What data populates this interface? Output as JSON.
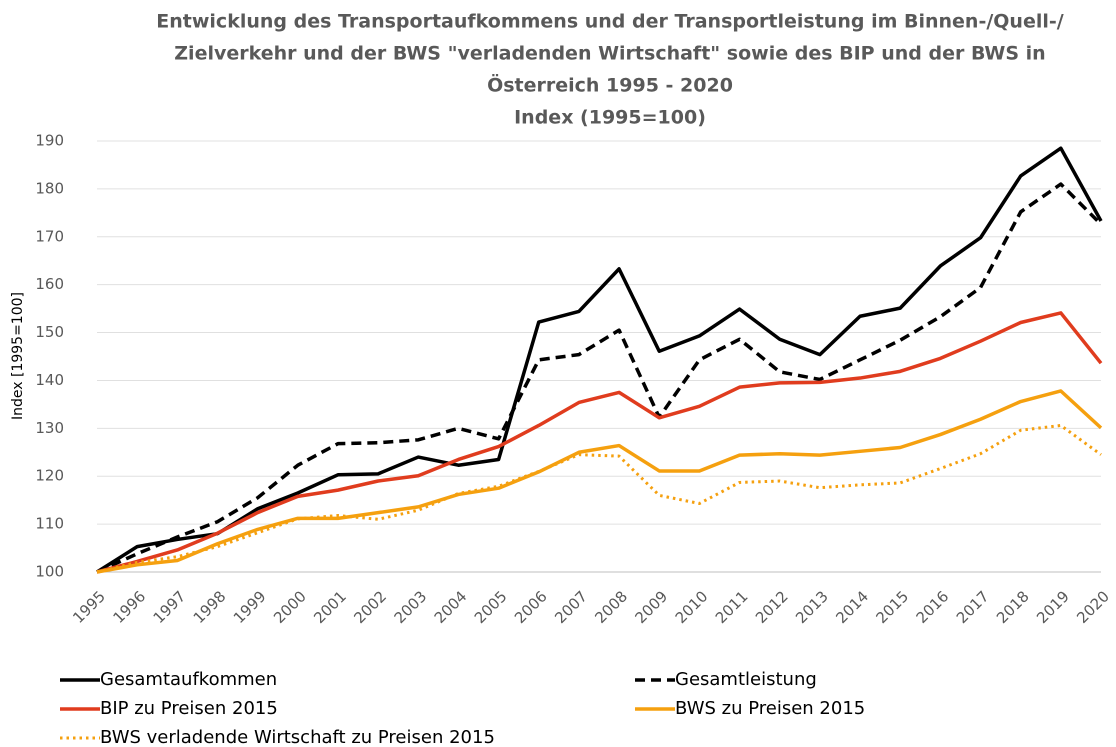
{
  "chart_data": {
    "type": "line",
    "title": [
      "Entwicklung des Transportaufkommens und der Transportleistung im Binnen-/Quell-/",
      "Zielverkehr und der BWS \"verladenden Wirtschaft\" sowie des BIP und der BWS in",
      "Österreich 1995 - 2020",
      "Index (1995=100)"
    ],
    "ylabel": "Index [1995=100]",
    "categories": [
      "1995",
      "1996",
      "1997",
      "1998",
      "1999",
      "2000",
      "2001",
      "2002",
      "2003",
      "2004",
      "2005",
      "2006",
      "2007",
      "2008",
      "2009",
      "2010",
      "2011",
      "2012",
      "2013",
      "2014",
      "2015",
      "2016",
      "2017",
      "2018",
      "2019",
      "2020"
    ],
    "ylim": [
      100,
      190
    ],
    "yticks": [
      100,
      110,
      120,
      130,
      140,
      150,
      160,
      170,
      180,
      190
    ],
    "grid": true,
    "series": [
      {
        "name": "Gesamtaufkommen",
        "color": "#000000",
        "dash": "solid",
        "values": [
          100,
          105.3,
          106.8,
          108,
          113.2,
          116.5,
          120.3,
          120.5,
          124,
          122.3,
          123.5,
          152.2,
          154.4,
          163.3,
          146.1,
          149.3,
          154.9,
          148.6,
          145.4,
          153.4,
          155.1,
          163.9,
          169.8,
          182.7,
          188.5,
          173.3
        ]
      },
      {
        "name": "Gesamtleistung",
        "color": "#000000",
        "dash": "dashed",
        "values": [
          100,
          103.8,
          107.3,
          110.5,
          115.5,
          122.3,
          126.8,
          127,
          127.6,
          130,
          127.8,
          144.3,
          145.4,
          150.5,
          132.3,
          144.3,
          148.6,
          141.8,
          140.2,
          144.3,
          148.4,
          153.3,
          159.4,
          175.2,
          181,
          172.6
        ]
      },
      {
        "name": "BIP zu Preisen 2015",
        "color": "#e03c1e",
        "dash": "solid",
        "values": [
          100,
          102.2,
          104.6,
          108.1,
          112.4,
          115.8,
          117.1,
          119,
          120.1,
          123.5,
          126.2,
          130.6,
          135.4,
          137.5,
          132.2,
          134.6,
          138.6,
          139.5,
          139.6,
          140.5,
          141.9,
          144.6,
          148.2,
          152.1,
          154.1,
          143.6
        ]
      },
      {
        "name": "BWS zu Preisen 2015",
        "color": "#f5a00f",
        "dash": "solid",
        "values": [
          100,
          101.5,
          102.4,
          105.9,
          108.9,
          111.2,
          111.2,
          112.4,
          113.6,
          116.2,
          117.5,
          120.9,
          125,
          126.4,
          121.1,
          121.1,
          124.4,
          124.7,
          124.4,
          125.2,
          126,
          128.7,
          131.9,
          135.6,
          137.8,
          130.1
        ]
      },
      {
        "name": "BWS verladende Wirtschaft zu Preisen 2015",
        "color": "#f5a00f",
        "dash": "dotted",
        "values": [
          100,
          102,
          103.2,
          105.3,
          108.2,
          111.1,
          111.8,
          111,
          112.9,
          116.4,
          117.9,
          121,
          124.5,
          124.2,
          116,
          114.3,
          118.7,
          119,
          117.6,
          118.2,
          118.6,
          121.6,
          124.7,
          129.6,
          130.6,
          124.5
        ]
      }
    ]
  }
}
